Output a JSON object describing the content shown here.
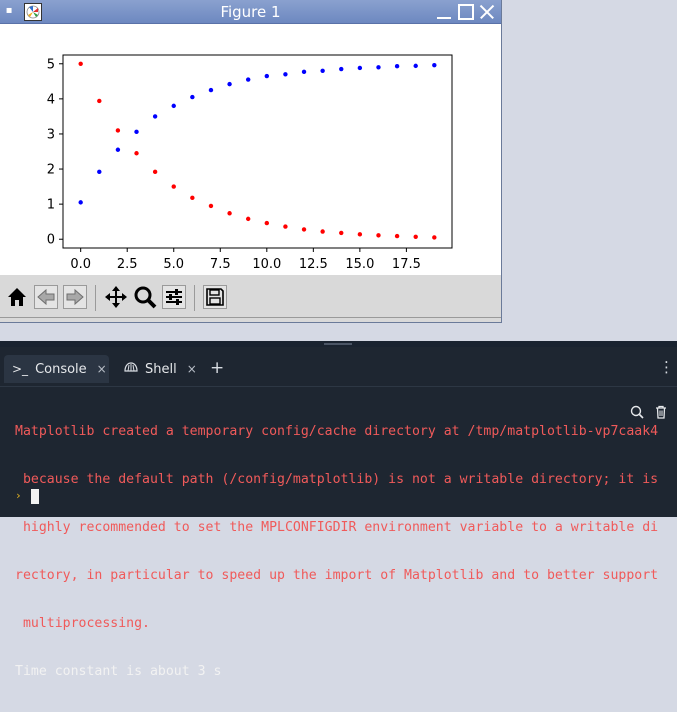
{
  "figure_window": {
    "title": "Figure 1",
    "controls": {
      "menu": "menu-icon",
      "minimize": "minimize-icon",
      "maximize": "maximize-icon",
      "close": "close-icon"
    }
  },
  "chart_data": {
    "type": "scatter",
    "title": "",
    "xlabel": "",
    "ylabel": "",
    "xlim": [
      -0.95,
      19.95
    ],
    "ylim": [
      -0.25,
      5.25
    ],
    "x_ticks": [
      "0.0",
      "2.5",
      "5.0",
      "7.5",
      "10.0",
      "12.5",
      "15.0",
      "17.5"
    ],
    "x_tick_values": [
      0,
      2.5,
      5,
      7.5,
      10,
      12.5,
      15,
      17.5
    ],
    "y_ticks": [
      "0",
      "1",
      "2",
      "3",
      "4",
      "5"
    ],
    "y_tick_values": [
      0,
      1,
      2,
      3,
      4,
      5
    ],
    "grid": false,
    "series": [
      {
        "color": "#ff0000",
        "x": [
          0,
          1,
          2,
          3,
          4,
          5,
          6,
          7,
          8,
          9,
          10,
          11,
          12,
          13,
          14,
          15,
          16,
          17,
          18,
          19
        ],
        "y": [
          5.0,
          3.94,
          3.1,
          2.45,
          1.92,
          1.5,
          1.18,
          0.95,
          0.74,
          0.58,
          0.46,
          0.36,
          0.28,
          0.22,
          0.18,
          0.14,
          0.11,
          0.09,
          0.07,
          0.05
        ]
      },
      {
        "color": "#0000ff",
        "x": [
          0,
          1,
          2,
          3,
          4,
          5,
          6,
          7,
          8,
          9,
          10,
          11,
          12,
          13,
          14,
          15,
          16,
          17,
          18,
          19
        ],
        "y": [
          1.05,
          1.92,
          2.55,
          3.06,
          3.5,
          3.8,
          4.05,
          4.25,
          4.42,
          4.55,
          4.65,
          4.7,
          4.77,
          4.8,
          4.85,
          4.88,
          4.9,
          4.93,
          4.94,
          4.96
        ]
      }
    ]
  },
  "toolbar": {
    "buttons": [
      "home-icon",
      "back-arrow-icon",
      "forward-arrow-icon",
      "pan-icon",
      "zoom-icon",
      "configure-subplots-icon",
      "save-icon"
    ]
  },
  "console_panel": {
    "tabs": [
      {
        "icon": ">_",
        "label": "Console",
        "close": "×"
      },
      {
        "icon": "shell-icon",
        "label": "Shell",
        "close": "×"
      }
    ],
    "add_tab": "+",
    "menu": "⋮",
    "output": {
      "error_lines": [
        "Matplotlib created a temporary config/cache directory at /tmp/matplotlib-vp7caak4",
        " because the default path (/config/matplotlib) is not a writable directory; it is",
        " highly recommended to set the MPLCONFIGDIR environment variable to a writable di",
        "rectory, in particular to speed up the import of Matplotlib and to better support",
        " multiprocessing."
      ],
      "stdout": "Time constant is about 3 s",
      "prompt": "›"
    }
  }
}
